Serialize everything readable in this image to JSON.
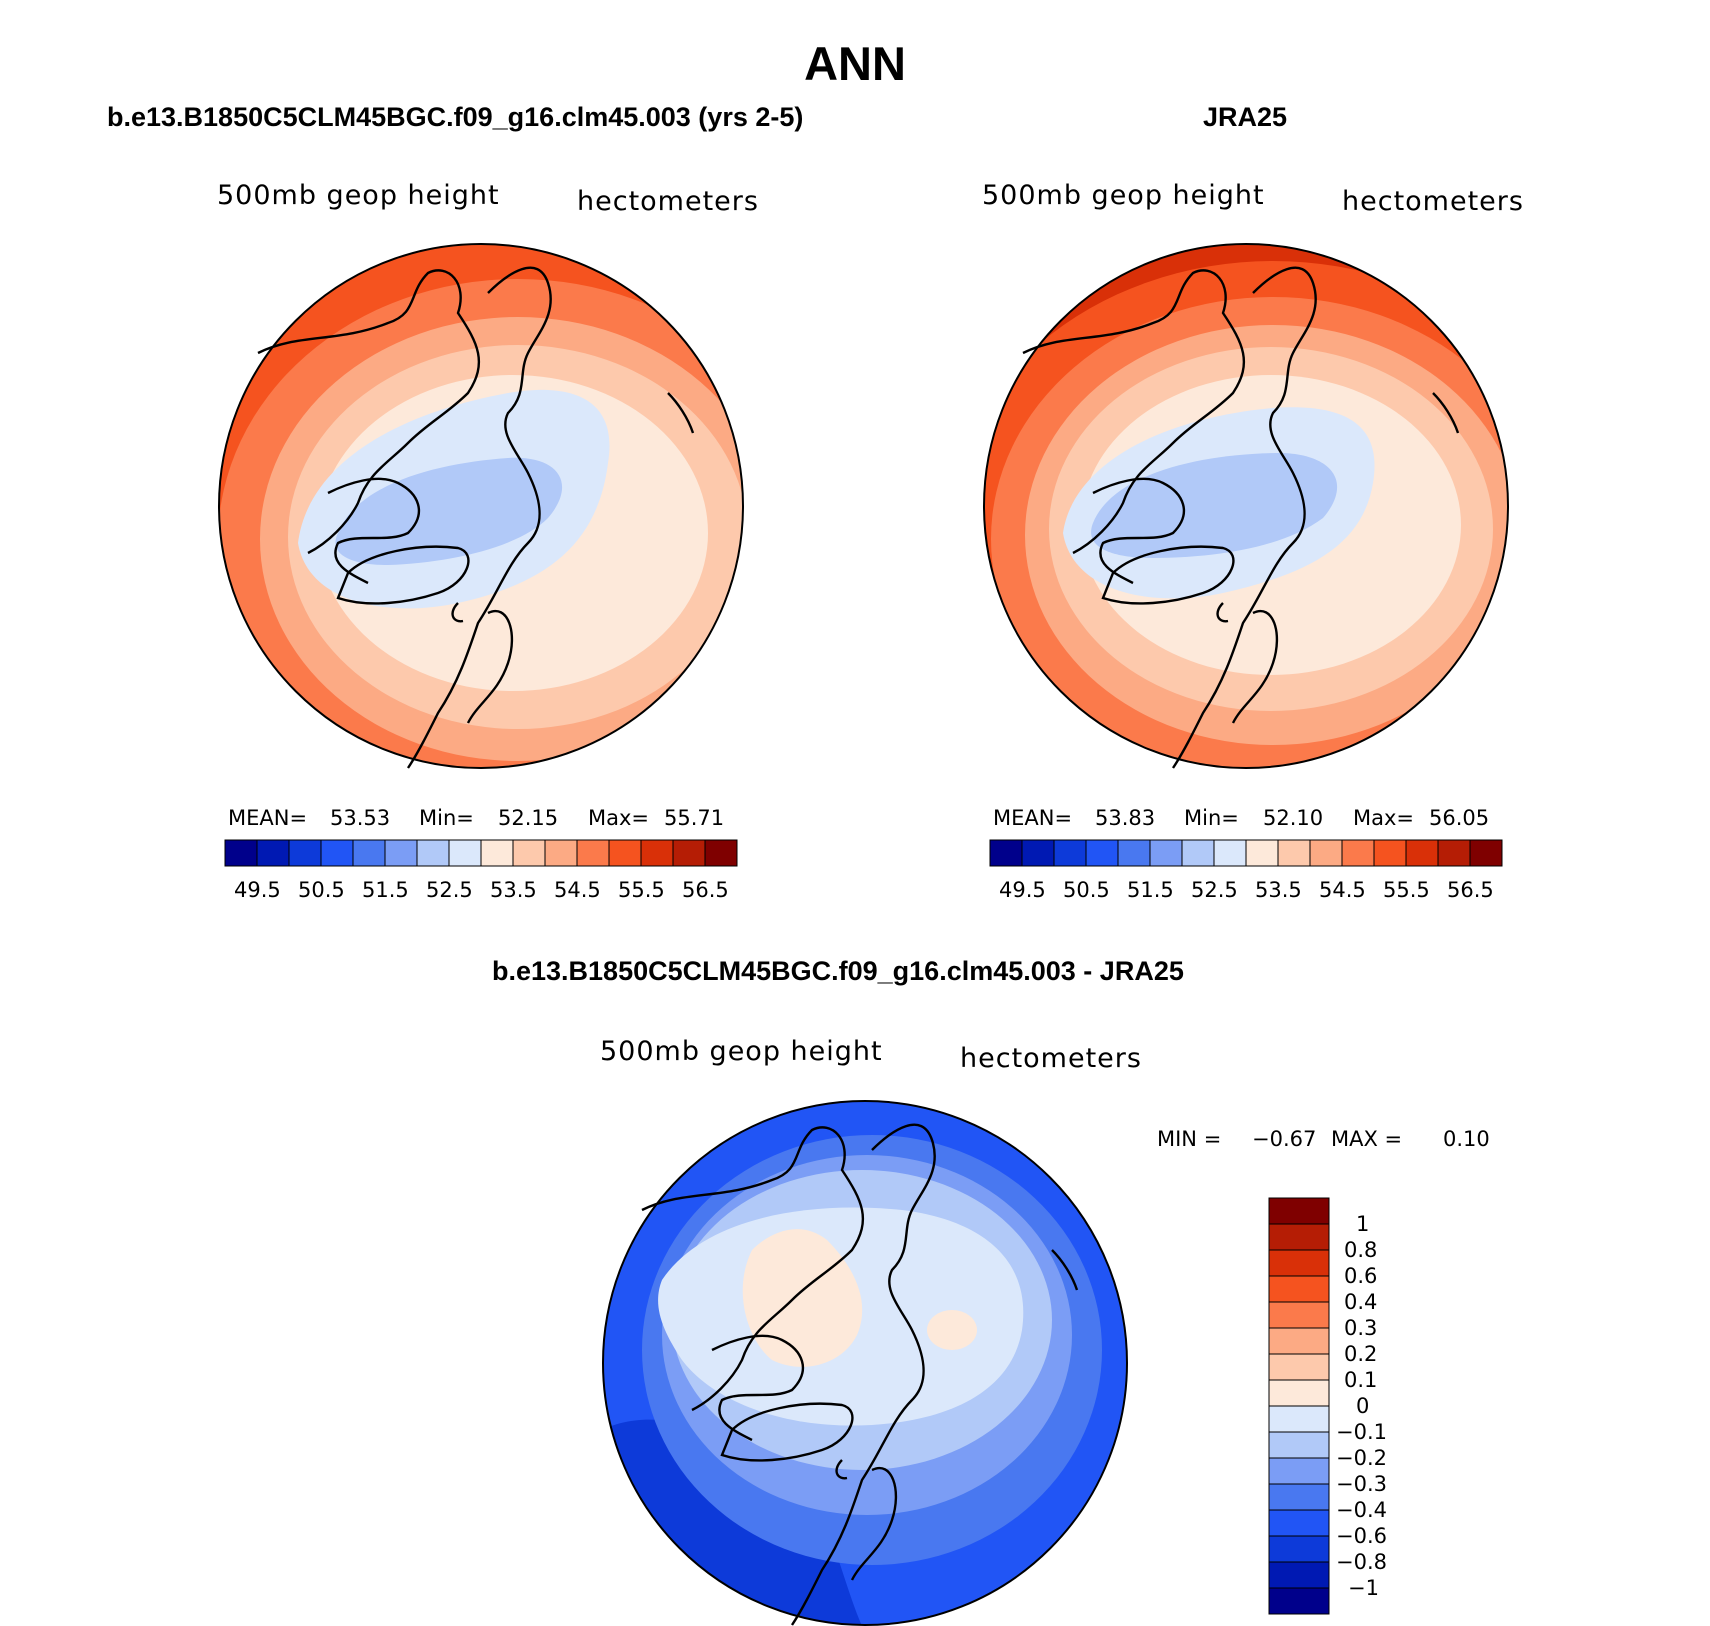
{
  "figure": {
    "title": "ANN"
  },
  "panels": [
    {
      "title": "b.e13.B1850C5CLM45BGC.f09_g16.clm45.003 (yrs 2-5)",
      "variable": "500mb geop height",
      "units": "hectometers",
      "stats": {
        "mean_label": "MEAN=",
        "mean": "53.53",
        "min_label": "Min=",
        "min": "52.15",
        "max_label": "Max=",
        "max": "55.71"
      },
      "colorbar_ticks": [
        "49.5",
        "50.5",
        "51.5",
        "52.5",
        "53.5",
        "54.5",
        "55.5",
        "56.5"
      ]
    },
    {
      "title": "JRA25",
      "variable": "500mb geop height",
      "units": "hectometers",
      "stats": {
        "mean_label": "MEAN=",
        "mean": "53.83",
        "min_label": "Min=",
        "min": "52.10",
        "max_label": "Max=",
        "max": "56.05"
      },
      "colorbar_ticks": [
        "49.5",
        "50.5",
        "51.5",
        "52.5",
        "53.5",
        "54.5",
        "55.5",
        "56.5"
      ]
    },
    {
      "title": "b.e13.B1850C5CLM45BGC.f09_g16.clm45.003 - JRA25",
      "variable": "500mb geop height",
      "units": "hectometers",
      "stats": {
        "min_label": "MIN =",
        "min": "−0.67",
        "max_label": "MAX =",
        "max": "0.10"
      },
      "colorbar_ticks": [
        "1",
        "0.8",
        "0.6",
        "0.4",
        "0.3",
        "0.2",
        "0.1",
        "0",
        "−0.1",
        "−0.2",
        "−0.3",
        "−0.4",
        "−0.6",
        "−0.8",
        "−1"
      ]
    }
  ],
  "colors": {
    "abs_scale": [
      "#00008b",
      "#0019b3",
      "#0d3ad9",
      "#2155f5",
      "#4978f0",
      "#7b9df5",
      "#b1c9f8",
      "#dbe8fb",
      "#fde9da",
      "#fdc9ac",
      "#fcaa84",
      "#fb7a4b",
      "#f5531f",
      "#d93008",
      "#b51d05",
      "#7f0000"
    ],
    "diff_scale": [
      "#7f0000",
      "#b51d05",
      "#d93008",
      "#f5531f",
      "#fb7a4b",
      "#fcaa84",
      "#fdc9ac",
      "#fde9da",
      "#dbe8fb",
      "#b1c9f8",
      "#7b9df5",
      "#4978f0",
      "#2155f5",
      "#0d3ad9",
      "#0019b3",
      "#00008b"
    ]
  }
}
